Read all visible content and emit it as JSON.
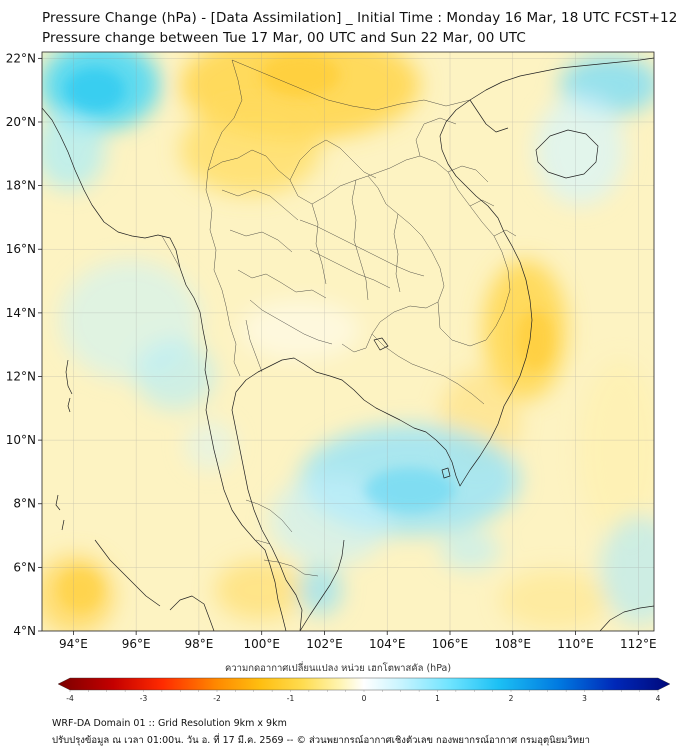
{
  "title_line1": "Pressure Change (hPa) - [Data Assimilation] _ Initial Time : Monday 16 Mar, 18 UTC FCST+120",
  "title_line2": "Pressure change between Tue 17 Mar, 00 UTC and Sun 22 Mar, 00 UTC",
  "map": {
    "lon_range": [
      93,
      112.5
    ],
    "lat_range": [
      4,
      22.2
    ],
    "lon_ticks": [
      {
        "value": 94,
        "label": "94°E"
      },
      {
        "value": 96,
        "label": "96°E"
      },
      {
        "value": 98,
        "label": "98°E"
      },
      {
        "value": 100,
        "label": "100°E"
      },
      {
        "value": 102,
        "label": "102°E"
      },
      {
        "value": 104,
        "label": "104°E"
      },
      {
        "value": 106,
        "label": "106°E"
      },
      {
        "value": 108,
        "label": "108°E"
      },
      {
        "value": 110,
        "label": "110°E"
      },
      {
        "value": 112,
        "label": "112°E"
      }
    ],
    "lat_ticks": [
      {
        "value": 4,
        "label": "4°N"
      },
      {
        "value": 6,
        "label": "6°N"
      },
      {
        "value": 8,
        "label": "8°N"
      },
      {
        "value": 10,
        "label": "10°N"
      },
      {
        "value": 12,
        "label": "12°N"
      },
      {
        "value": 14,
        "label": "14°N"
      },
      {
        "value": 16,
        "label": "16°N"
      },
      {
        "value": 18,
        "label": "18°N"
      },
      {
        "value": 20,
        "label": "20°N"
      },
      {
        "value": 22,
        "label": "22°N"
      }
    ],
    "background_color": "#fdf3c2"
  },
  "colorbar": {
    "title": "ความกดอากาศเปลี่ยนแปลง หน่วย เฮกโตพาสคัล (hPa)",
    "min": -4,
    "max": 4,
    "tick_labels": [
      {
        "value": -4,
        "label": "-4"
      },
      {
        "value": -3,
        "label": "-3"
      },
      {
        "value": -2,
        "label": "-2"
      },
      {
        "value": -1,
        "label": "-1"
      },
      {
        "value": 0,
        "label": "0"
      },
      {
        "value": 1,
        "label": "1"
      },
      {
        "value": 2,
        "label": "2"
      },
      {
        "value": 3,
        "label": "3"
      },
      {
        "value": 4,
        "label": "4"
      }
    ],
    "colors": [
      "#7a0000",
      "#c40000",
      "#ff2a00",
      "#ff7a00",
      "#ffb000",
      "#ffd84a",
      "#fff0a0",
      "#ffffff",
      "#b8f0ff",
      "#5fe0ff",
      "#18bdf2",
      "#0070dd",
      "#0020b0",
      "#00087a"
    ]
  },
  "footer_line1": "WRF-DA Domain 01 :: Grid Resolution 9km x 9km",
  "footer_line2": "ปรับปรุงข้อมูล ณ เวลา 01:00น. วัน อ. ที่ 17 มี.ค. 2569 -- © ส่วนพยากรณ์อากาศเชิงตัวเลข กองพยากรณ์อากาศ กรมอุตุนิยมวิทยา"
}
